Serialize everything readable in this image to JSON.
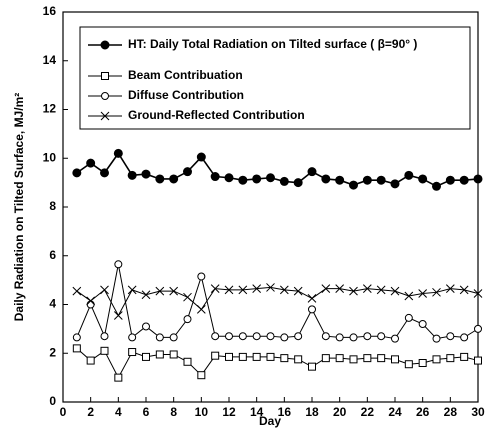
{
  "chart_data": {
    "type": "line",
    "x_label": "Day",
    "y_label": "Daily Radiation on Tilted Surface, MJ/m²",
    "x": [
      1,
      2,
      3,
      4,
      5,
      6,
      7,
      8,
      9,
      10,
      11,
      12,
      13,
      14,
      15,
      16,
      17,
      18,
      19,
      20,
      21,
      22,
      23,
      24,
      25,
      26,
      27,
      28,
      29,
      30
    ],
    "xlim": [
      0,
      30
    ],
    "xticks": [
      0,
      2,
      4,
      6,
      8,
      10,
      12,
      14,
      16,
      18,
      20,
      22,
      24,
      26,
      28,
      30
    ],
    "ylim": [
      0,
      16
    ],
    "yticks": [
      0,
      2,
      4,
      6,
      8,
      10,
      12,
      14,
      16
    ],
    "legend": "top-right",
    "series": [
      {
        "name": "HT: Daily Total Radiation on Tilted surface ( β=90° )",
        "color": "#000000",
        "marker": "filled-circle",
        "values": [
          9.4,
          9.8,
          9.4,
          10.2,
          9.3,
          9.35,
          9.15,
          9.15,
          9.45,
          10.05,
          9.25,
          9.2,
          9.1,
          9.15,
          9.2,
          9.05,
          9.0,
          9.45,
          9.15,
          9.1,
          8.9,
          9.1,
          9.1,
          8.95,
          9.3,
          9.15,
          8.85,
          9.1,
          9.1,
          9.15
        ]
      },
      {
        "name": "Beam Contribuation",
        "color": "#000000",
        "marker": "square",
        "values": [
          2.2,
          1.7,
          2.1,
          1.0,
          2.05,
          1.85,
          1.95,
          1.95,
          1.65,
          1.1,
          1.9,
          1.85,
          1.85,
          1.85,
          1.85,
          1.8,
          1.75,
          1.45,
          1.8,
          1.8,
          1.75,
          1.8,
          1.8,
          1.75,
          1.55,
          1.6,
          1.75,
          1.8,
          1.85,
          1.7
        ]
      },
      {
        "name": "Diffuse Contribution",
        "color": "#000000",
        "marker": "circle",
        "values": [
          2.65,
          4.0,
          2.7,
          5.65,
          2.65,
          3.1,
          2.65,
          2.65,
          3.4,
          5.15,
          2.7,
          2.7,
          2.7,
          2.7,
          2.7,
          2.65,
          2.7,
          3.8,
          2.7,
          2.65,
          2.65,
          2.7,
          2.7,
          2.6,
          3.45,
          3.2,
          2.6,
          2.7,
          2.65,
          3.0
        ]
      },
      {
        "name": "Ground-Reflected Contribution",
        "color": "#000000",
        "marker": "x",
        "values": [
          4.55,
          4.15,
          4.6,
          3.55,
          4.6,
          4.4,
          4.55,
          4.55,
          4.3,
          3.8,
          4.65,
          4.6,
          4.6,
          4.65,
          4.7,
          4.6,
          4.55,
          4.25,
          4.65,
          4.65,
          4.55,
          4.65,
          4.6,
          4.55,
          4.35,
          4.45,
          4.5,
          4.65,
          4.6,
          4.45
        ]
      }
    ]
  }
}
